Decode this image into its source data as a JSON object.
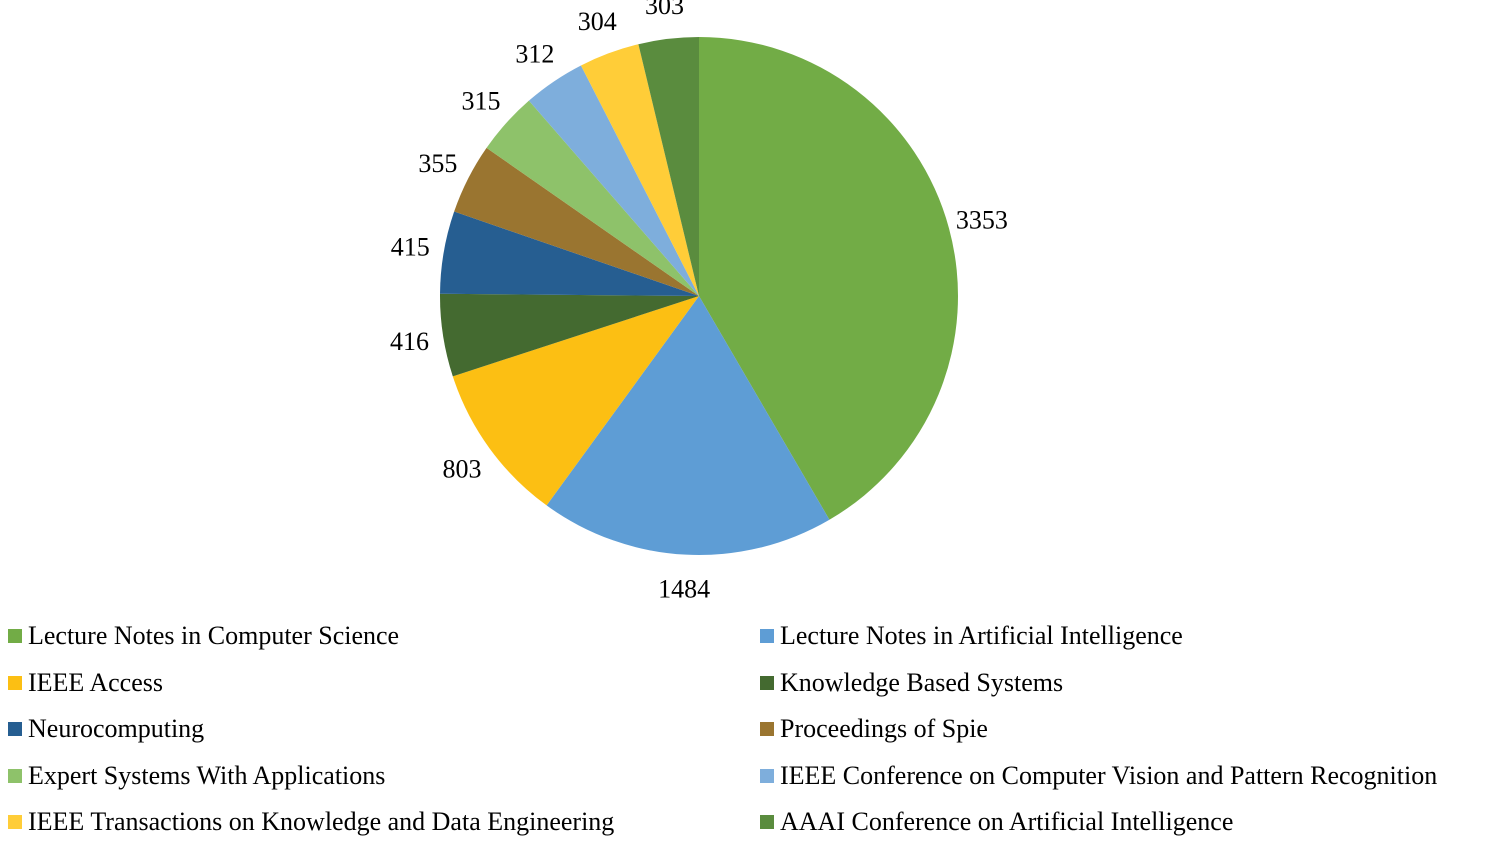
{
  "chart_data": {
    "type": "pie",
    "title": "",
    "start_angle": "top",
    "direction": "clockwise",
    "legend_placement": "bottom",
    "slices": [
      {
        "label": "Lecture Notes in Computer Science",
        "value": 3353,
        "color": "#72AC46"
      },
      {
        "label": "Lecture Notes in Artificial Intelligence",
        "value": 1484,
        "color": "#5E9DD5"
      },
      {
        "label": "IEEE Access",
        "value": 803,
        "color": "#FCBF13"
      },
      {
        "label": "Knowledge Based Systems",
        "value": 416,
        "color": "#446A30"
      },
      {
        "label": "Neurocomputing",
        "value": 415,
        "color": "#265E91"
      },
      {
        "label": "Proceedings of Spie",
        "value": 355,
        "color": "#9A7530"
      },
      {
        "label": "Expert Systems With Applications",
        "value": 315,
        "color": "#8EC26A"
      },
      {
        "label": "IEEE Conference on Computer Vision and Pattern Recognition",
        "value": 312,
        "color": "#7EAEDC"
      },
      {
        "label": "IEEE Transactions on Knowledge and Data Engineering",
        "value": 304,
        "color": "#FFCD38"
      },
      {
        "label": "AAAI Conference on Artificial Intelligence",
        "value": 303,
        "color": "#5A8C3E"
      }
    ]
  }
}
